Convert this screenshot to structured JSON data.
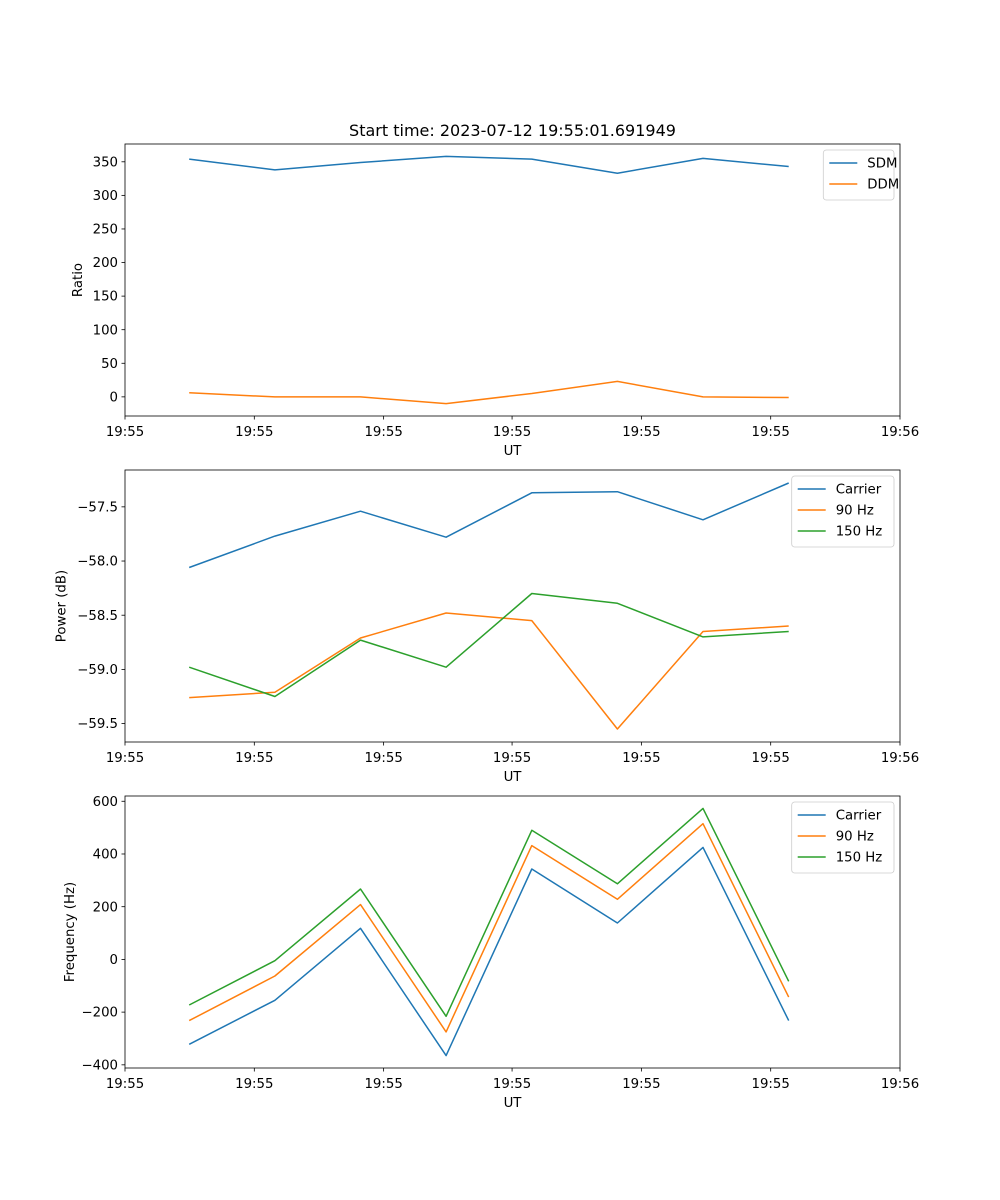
{
  "chart_data": [
    {
      "type": "line",
      "title": "Start time: 2023-07-12 19:55:01.691949",
      "xlabel": "UT",
      "ylabel": "Ratio",
      "x": [
        0,
        1,
        2,
        3,
        4,
        5,
        6,
        7
      ],
      "xlim": [
        -0.75,
        8.3
      ],
      "xticks": [
        -0.75,
        0.76,
        2.27,
        3.77,
        5.28,
        6.79,
        8.3
      ],
      "xtick_labels": [
        "19:55",
        "19:55",
        "19:55",
        "19:55",
        "19:55",
        "19:55",
        "19:56"
      ],
      "ylim": [
        -28.5,
        376.5
      ],
      "yticks": [
        0,
        50,
        100,
        150,
        200,
        250,
        300,
        350
      ],
      "ytick_labels": [
        "0",
        "50",
        "100",
        "150",
        "200",
        "250",
        "300",
        "350"
      ],
      "legend": "top-right",
      "series": [
        {
          "name": "SDM",
          "color": "#1f77b4",
          "values": [
            354,
            338,
            349,
            358,
            354,
            333,
            355,
            343
          ]
        },
        {
          "name": "DDM",
          "color": "#ff7f0e",
          "values": [
            6,
            0,
            0,
            -10,
            5,
            23,
            0,
            -1
          ]
        }
      ]
    },
    {
      "type": "line",
      "title": "",
      "xlabel": "UT",
      "ylabel": "Power (dB)",
      "x": [
        0,
        1,
        2,
        3,
        4,
        5,
        6,
        7
      ],
      "xlim": [
        -0.75,
        8.3
      ],
      "xticks": [
        -0.75,
        0.76,
        2.27,
        3.77,
        5.28,
        6.79,
        8.3
      ],
      "xtick_labels": [
        "19:55",
        "19:55",
        "19:55",
        "19:55",
        "19:55",
        "19:55",
        "19:56"
      ],
      "ylim": [
        -59.67,
        -57.16
      ],
      "yticks": [
        -59.5,
        -59.0,
        -58.5,
        -58.0,
        -57.5
      ],
      "ytick_labels": [
        "−59.5",
        "−59.0",
        "−58.5",
        "−58.0",
        "−57.5"
      ],
      "legend": "top-right",
      "series": [
        {
          "name": "Carrier",
          "color": "#1f77b4",
          "values": [
            -58.06,
            -57.77,
            -57.54,
            -57.78,
            -57.37,
            -57.36,
            -57.62,
            -57.28
          ]
        },
        {
          "name": "90 Hz",
          "color": "#ff7f0e",
          "values": [
            -59.26,
            -59.21,
            -58.71,
            -58.48,
            -58.55,
            -59.55,
            -58.65,
            -58.6
          ]
        },
        {
          "name": "150 Hz",
          "color": "#2ca02c",
          "values": [
            -58.98,
            -59.25,
            -58.73,
            -58.98,
            -58.3,
            -58.39,
            -58.7,
            -58.65
          ]
        }
      ]
    },
    {
      "type": "line",
      "title": "",
      "xlabel": "UT",
      "ylabel": "Frequency (Hz)",
      "x": [
        0,
        1,
        2,
        3,
        4,
        5,
        6,
        7
      ],
      "xlim": [
        -0.75,
        8.3
      ],
      "xticks": [
        -0.75,
        0.76,
        2.27,
        3.77,
        5.28,
        6.79,
        8.3
      ],
      "xtick_labels": [
        "19:55",
        "19:55",
        "19:55",
        "19:55",
        "19:55",
        "19:55",
        "19:56"
      ],
      "ylim": [
        -412,
        620
      ],
      "yticks": [
        -400,
        -200,
        0,
        200,
        400,
        600
      ],
      "ytick_labels": [
        "−400",
        "−200",
        "0",
        "200",
        "400",
        "600"
      ],
      "legend": "top-right",
      "series": [
        {
          "name": "Carrier",
          "color": "#1f77b4",
          "values": [
            -322,
            -155,
            118,
            -365,
            343,
            138,
            425,
            -232
          ]
        },
        {
          "name": "90 Hz",
          "color": "#ff7f0e",
          "values": [
            -232,
            -63,
            208,
            -275,
            432,
            228,
            515,
            -143
          ]
        },
        {
          "name": "150 Hz",
          "color": "#2ca02c",
          "values": [
            -173,
            -5,
            267,
            -216,
            490,
            287,
            573,
            -83
          ]
        }
      ]
    }
  ]
}
